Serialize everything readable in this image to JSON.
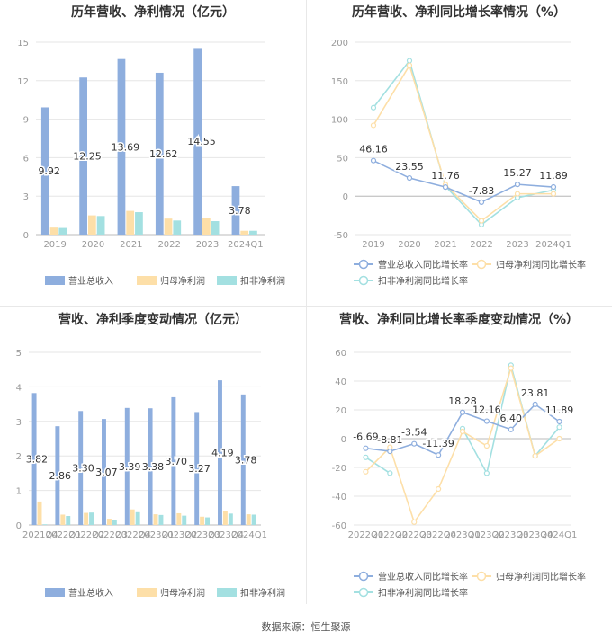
{
  "footer": {
    "source": "数据来源：恒生聚源"
  },
  "colors": {
    "rev": "#8eaede",
    "np": "#fddfa8",
    "dnp": "#a3e0e1",
    "axis": "#999999",
    "grid": "#e6e6e6",
    "title": "#333333",
    "label": "#333333"
  },
  "chart_data": [
    {
      "type": "bar",
      "title": "历年营收、净利情况（亿元）",
      "categories": [
        "2019",
        "2020",
        "2021",
        "2022",
        "2023",
        "2024Q1"
      ],
      "ylim": [
        0,
        15
      ],
      "yticks": [
        "0",
        "3",
        "6",
        "9",
        "12",
        "15"
      ],
      "series": [
        {
          "name": "营业总收入",
          "values": [
            9.92,
            12.25,
            13.69,
            12.62,
            14.55,
            3.78
          ]
        },
        {
          "name": "归母净利润",
          "values": [
            0.55,
            1.5,
            1.85,
            1.25,
            1.3,
            0.3
          ]
        },
        {
          "name": "扣非净利润",
          "values": [
            0.52,
            1.45,
            1.75,
            1.1,
            1.05,
            0.3
          ]
        }
      ],
      "data_labels": [
        "9.92",
        "12.25",
        "13.69",
        "12.62",
        "14.55",
        "3.78"
      ],
      "legend": "bottom"
    },
    {
      "type": "line",
      "title": "历年营收、净利同比增长率情况（%）",
      "categories": [
        "2019",
        "2020",
        "2021",
        "2022",
        "2023",
        "2024Q1"
      ],
      "ylim": [
        -50,
        200
      ],
      "yticks": [
        "-50",
        "0",
        "50",
        "100",
        "150",
        "200"
      ],
      "series": [
        {
          "name": "营业总收入同比增长率",
          "values": [
            46.16,
            23.55,
            11.76,
            -7.83,
            15.27,
            11.89
          ]
        },
        {
          "name": "归母净利润同比增长率",
          "values": [
            92,
            170,
            15,
            -32,
            3,
            3
          ]
        },
        {
          "name": "扣非净利润同比增长率",
          "values": [
            115,
            176,
            13,
            -37,
            -2,
            8
          ]
        }
      ],
      "data_labels": [
        "46.16",
        "23.55",
        "11.76",
        "-7.83",
        "15.27",
        "11.89"
      ],
      "legend": "bottom"
    },
    {
      "type": "bar",
      "title": "营收、净利季度变动情况（亿元）",
      "categories": [
        "2021Q4",
        "2022Q1",
        "2022Q2",
        "2022Q3",
        "2022Q4",
        "2023Q1",
        "2023Q2",
        "2023Q3",
        "2023Q4",
        "2024Q1"
      ],
      "ylim": [
        0,
        5
      ],
      "yticks": [
        "0",
        "1",
        "2",
        "3",
        "4",
        "5"
      ],
      "series": [
        {
          "name": "营业总收入",
          "values": [
            3.82,
            2.86,
            3.3,
            3.07,
            3.39,
            3.38,
            3.7,
            3.27,
            4.19,
            3.78
          ]
        },
        {
          "name": "归母净利润",
          "values": [
            0.68,
            0.3,
            0.35,
            0.18,
            0.45,
            0.31,
            0.34,
            0.24,
            0.4,
            0.31
          ]
        },
        {
          "name": "扣非净利润",
          "values": [
            0.02,
            0.26,
            0.36,
            0.15,
            0.37,
            0.29,
            0.27,
            0.22,
            0.33,
            0.3
          ]
        }
      ],
      "data_labels": [
        "3.82",
        "2.86",
        "3.30",
        "3.07",
        "3.39",
        "3.38",
        "3.70",
        "3.27",
        "4.19",
        "3.78"
      ],
      "legend": "bottom"
    },
    {
      "type": "line",
      "title": "营收、净利同比增长率季度变动情况（%）",
      "categories": [
        "2022Q1",
        "2022Q2",
        "2022Q3",
        "2022Q4",
        "2023Q1",
        "2023Q2",
        "2023Q3",
        "2023Q4",
        "2024Q1"
      ],
      "ylim": [
        -60,
        60
      ],
      "yticks": [
        "-60",
        "-40",
        "-20",
        "0",
        "20",
        "40",
        "60"
      ],
      "series": [
        {
          "name": "营业总收入同比增长率",
          "values": [
            -6.69,
            -8.81,
            -3.54,
            -11.39,
            18.28,
            12.16,
            6.4,
            23.81,
            11.89
          ]
        },
        {
          "name": "归母净利润同比增长率",
          "values": [
            -23,
            -6,
            -58,
            -35,
            5,
            -5,
            49,
            -12,
            0
          ]
        },
        {
          "name": "扣非净利润同比增长率",
          "values": [
            -13,
            -24,
            null,
            null,
            7,
            -24,
            51,
            -12,
            8
          ]
        }
      ],
      "data_labels": [
        "-6.69",
        "-8.81",
        "-3.54",
        "-11.39",
        "18.28",
        "12.16",
        "6.40",
        "23.81",
        "11.89"
      ],
      "legend": "bottom"
    }
  ]
}
